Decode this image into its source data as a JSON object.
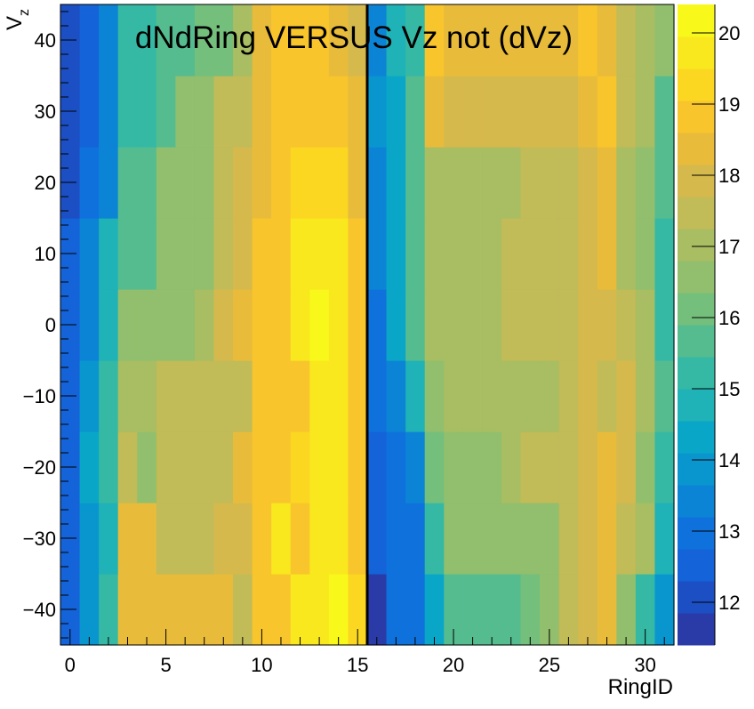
{
  "chart_data": {
    "type": "heatmap",
    "title": "dNdRing VERSUS Vz not (dVz)",
    "xlabel": "RingID",
    "ylabel": "V",
    "ylabel_subscript": "z",
    "xlim": [
      -0.5,
      31.5
    ],
    "ylim": [
      -45,
      45
    ],
    "x_ticks": [
      0,
      5,
      10,
      15,
      20,
      25,
      30
    ],
    "y_ticks": [
      -40,
      -30,
      -20,
      -10,
      0,
      10,
      20,
      30,
      40
    ],
    "y_bin_edges": [
      -45,
      -35,
      -25,
      -15,
      -5,
      5,
      15,
      25,
      35,
      45
    ],
    "z_range": [
      11.4,
      20.4
    ],
    "z_ticks": [
      12,
      13,
      14,
      15,
      16,
      17,
      18,
      19,
      20
    ],
    "grid": false,
    "vertical_line_x": 15.5,
    "palette": [
      "#2a3ba8",
      "#1c4fc4",
      "#1463d8",
      "#0f72dc",
      "#0b84d6",
      "#0996cf",
      "#0aa6c8",
      "#1fb2b6",
      "#35b9a4",
      "#55bc90",
      "#74bf7c",
      "#91bf6d",
      "#a9bd62",
      "#c1bb58",
      "#d6b94c",
      "#e8bc3a",
      "#f8c52c",
      "#fbd722",
      "#f9e81e",
      "#f8f81a"
    ],
    "rows_bottom_to_top": [
      [
        12.4,
        13.8,
        15.2,
        18.2,
        18.2,
        18.2,
        18.2,
        18.2,
        18.2,
        17.4,
        18.6,
        19.0,
        19.6,
        19.8,
        20.0,
        19.4,
        11.8,
        13.2,
        13.2,
        14.4,
        15.8,
        15.8,
        15.8,
        15.8,
        16.2,
        16.6,
        17.4,
        17.8,
        18.2,
        16.4,
        15.4,
        13.8
      ],
      [
        12.4,
        13.8,
        14.6,
        18.2,
        18.2,
        17.4,
        17.4,
        17.4,
        17.8,
        17.8,
        18.6,
        19.6,
        19.0,
        19.6,
        19.8,
        19.0,
        12.4,
        13.2,
        13.2,
        15.4,
        16.4,
        16.4,
        16.4,
        16.4,
        16.4,
        16.4,
        17.4,
        17.8,
        18.4,
        17.4,
        16.8,
        14.6
      ],
      [
        12.4,
        14.4,
        15.4,
        17.4,
        16.6,
        17.4,
        17.4,
        17.4,
        17.4,
        18.2,
        18.6,
        19.0,
        19.4,
        19.6,
        19.6,
        19.0,
        12.4,
        13.0,
        13.6,
        16.0,
        16.4,
        16.4,
        16.4,
        16.8,
        17.4,
        17.4,
        17.4,
        17.8,
        18.4,
        17.8,
        16.6,
        15.0
      ],
      [
        12.4,
        13.8,
        15.4,
        17.0,
        17.0,
        17.4,
        17.4,
        17.4,
        17.4,
        17.4,
        18.6,
        18.6,
        19.0,
        19.6,
        19.6,
        19.0,
        12.8,
        13.6,
        14.6,
        16.6,
        16.8,
        16.8,
        16.8,
        16.8,
        17.0,
        17.0,
        17.4,
        17.8,
        17.4,
        17.8,
        16.8,
        15.6
      ],
      [
        12.4,
        13.6,
        14.6,
        16.6,
        16.6,
        16.6,
        16.6,
        17.0,
        18.0,
        18.2,
        18.6,
        19.0,
        19.6,
        20.0,
        19.6,
        18.6,
        13.2,
        14.2,
        15.6,
        16.8,
        16.8,
        16.8,
        17.2,
        17.4,
        17.4,
        17.4,
        17.4,
        17.8,
        17.8,
        17.4,
        16.8,
        15.4
      ],
      [
        12.4,
        13.4,
        14.6,
        15.8,
        15.8,
        16.6,
        16.6,
        16.6,
        17.4,
        17.8,
        18.6,
        19.0,
        19.6,
        19.6,
        19.6,
        18.6,
        13.4,
        14.2,
        15.6,
        16.8,
        16.8,
        16.8,
        17.2,
        17.4,
        17.4,
        17.4,
        17.4,
        17.8,
        18.2,
        17.2,
        16.6,
        15.4
      ],
      [
        12.0,
        12.8,
        13.6,
        15.8,
        15.8,
        16.6,
        16.6,
        16.6,
        17.4,
        17.8,
        18.2,
        19.0,
        19.2,
        19.2,
        19.2,
        18.2,
        13.4,
        14.2,
        15.6,
        16.8,
        16.8,
        16.8,
        16.8,
        17.2,
        17.4,
        17.4,
        17.4,
        17.8,
        18.2,
        17.2,
        16.6,
        15.6
      ],
      [
        12.0,
        12.4,
        13.6,
        15.2,
        15.2,
        15.8,
        16.6,
        16.6,
        17.4,
        17.4,
        18.2,
        18.6,
        18.6,
        18.6,
        18.6,
        18.2,
        13.8,
        14.4,
        15.6,
        18.2,
        17.8,
        17.8,
        17.8,
        17.8,
        17.8,
        17.8,
        17.8,
        18.2,
        18.6,
        17.4,
        16.8,
        15.6
      ],
      [
        12.0,
        12.4,
        13.4,
        15.0,
        15.2,
        15.6,
        15.6,
        16.0,
        16.2,
        17.2,
        18.2,
        18.6,
        18.6,
        18.6,
        18.2,
        18.0,
        13.4,
        14.6,
        15.4,
        18.6,
        18.2,
        18.2,
        18.2,
        18.2,
        18.2,
        18.2,
        18.2,
        18.6,
        18.2,
        17.4,
        17.2,
        16.4
      ]
    ]
  }
}
